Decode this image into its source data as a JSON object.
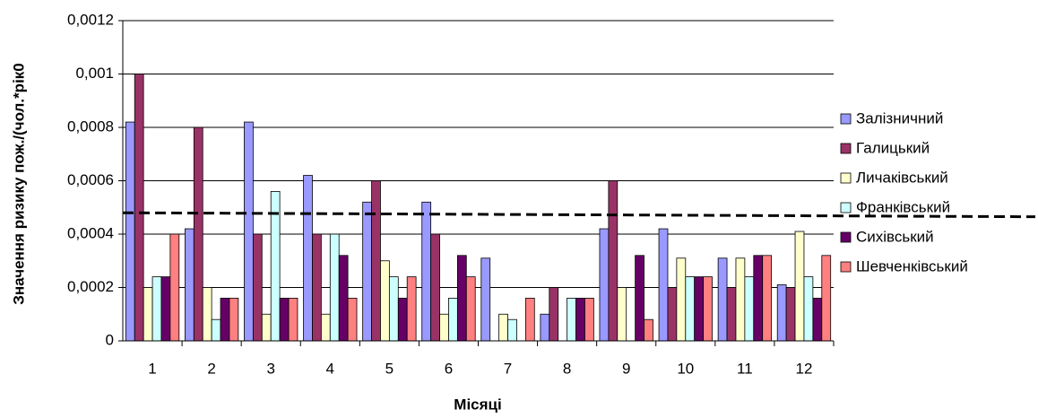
{
  "chart_data": {
    "type": "bar",
    "x_label": "Місяці",
    "y_label": "Значення ризику пож./(чол.*рік0",
    "categories": [
      "1",
      "2",
      "3",
      "4",
      "5",
      "6",
      "7",
      "8",
      "9",
      "10",
      "11",
      "12"
    ],
    "series": [
      {
        "name": "Залізничний",
        "color": "#9999ff",
        "values": [
          0.00082,
          0.00042,
          0.00082,
          0.00062,
          0.00052,
          0.00052,
          0.00031,
          0.0001,
          0.00042,
          0.00042,
          0.00031,
          0.00021
        ]
      },
      {
        "name": "Галицький",
        "color": "#993366",
        "values": [
          0.001,
          0.0008,
          0.0004,
          0.0004,
          0.0006,
          0.0004,
          0,
          0.0002,
          0.0006,
          0.0002,
          0.0002,
          0.0002
        ]
      },
      {
        "name": "Личаківський",
        "color": "#ffffcc",
        "values": [
          0.0002,
          0.0002,
          0.0001,
          0.0001,
          0.0003,
          0.0001,
          0.0001,
          0,
          0.0002,
          0.00031,
          0.00031,
          0.00041
        ]
      },
      {
        "name": "Франківський",
        "color": "#ccffff",
        "values": [
          0.00024,
          8e-05,
          0.00056,
          0.0004,
          0.00024,
          0.00016,
          8e-05,
          0.00016,
          0,
          0.00024,
          0.00024,
          0.00024
        ]
      },
      {
        "name": "Сихівський",
        "color": "#660066",
        "values": [
          0.00024,
          0.00016,
          0.00016,
          0.00032,
          0.00016,
          0.00032,
          0,
          0.00016,
          0.00032,
          0.00024,
          0.00032,
          0.00016
        ]
      },
      {
        "name": "Шевченківський",
        "color": "#ff8080",
        "values": [
          0.0004,
          0.00016,
          0.00016,
          0.00016,
          0.00024,
          0.00024,
          0.00016,
          0.00016,
          8e-05,
          0.00024,
          0.00032,
          0.00032
        ]
      }
    ],
    "ylim": [
      0,
      0.0012
    ],
    "yticks": [
      0,
      {
        "value": 0.0002,
        "label": "0,0002"
      },
      {
        "value": 0.0004,
        "label": "0,0004"
      },
      {
        "value": 0.0006,
        "label": "0,0006"
      },
      {
        "value": 0.0008,
        "label": "0,0008"
      },
      {
        "value": 0.001,
        "label": "0,001"
      },
      {
        "value": 0.0012,
        "label": "0,0012"
      }
    ],
    "grid": true,
    "legend": "right",
    "reference_line": [
      0.00048,
      0.000465
    ]
  }
}
